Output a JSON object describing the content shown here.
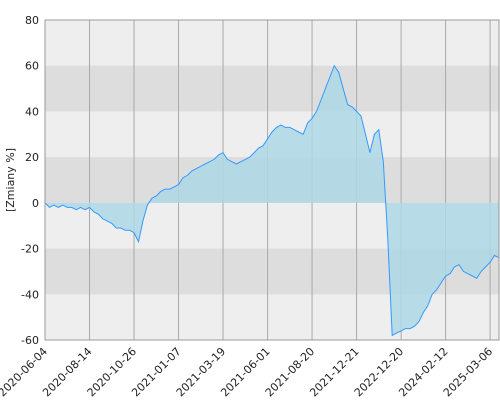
{
  "chart_data": {
    "type": "line",
    "y_label": "[Zmiany %]",
    "color": "#3399ff",
    "fill": "#add8e6",
    "grid": true,
    "values": [
      0,
      -2,
      -1,
      -2,
      -1,
      -2,
      -2,
      -3,
      -2,
      -3,
      -2,
      -4,
      -5,
      -7,
      -8,
      -9,
      -11,
      -11,
      -12,
      -12,
      -13,
      -17,
      -8,
      -1,
      2,
      3,
      5,
      6,
      6,
      7,
      8,
      11,
      12,
      14,
      15,
      16,
      17,
      18,
      19,
      21,
      22,
      19,
      18,
      17,
      18,
      19,
      20,
      22,
      24,
      25,
      28,
      31,
      33,
      34,
      33,
      33,
      32,
      31,
      30,
      35,
      37,
      40,
      45,
      50,
      55,
      60,
      57,
      50,
      43,
      42,
      40,
      38,
      30,
      22,
      30,
      32,
      18,
      -15,
      -58,
      -57,
      -56,
      -55,
      -55,
      -54,
      -52,
      -48,
      -45,
      -40,
      -38,
      -35,
      -32,
      -31,
      -28,
      -27,
      -30,
      -31,
      -32,
      -33,
      -30,
      -28,
      -26,
      -23,
      -24
    ],
    "xlim": [
      0,
      102
    ],
    "xticks": [
      {
        "value": 0,
        "label": "2020-06-04"
      },
      {
        "value": 10,
        "label": "2020-08-14"
      },
      {
        "value": 20,
        "label": "2020-10-26"
      },
      {
        "value": 30,
        "label": "2021-01-07"
      },
      {
        "value": 40,
        "label": "2021-03-19"
      },
      {
        "value": 50,
        "label": "2021-06-01"
      },
      {
        "value": 60,
        "label": "2021-08-20"
      },
      {
        "value": 70,
        "label": "2021-12-21"
      },
      {
        "value": 80,
        "label": "2022-12-20"
      },
      {
        "value": 90,
        "label": "2024-02-12"
      },
      {
        "value": 100,
        "label": "2025-03-06"
      }
    ],
    "ylim": [
      -60,
      80
    ],
    "yticks": [
      -60,
      -40,
      -20,
      0,
      20,
      40,
      60,
      80
    ]
  }
}
